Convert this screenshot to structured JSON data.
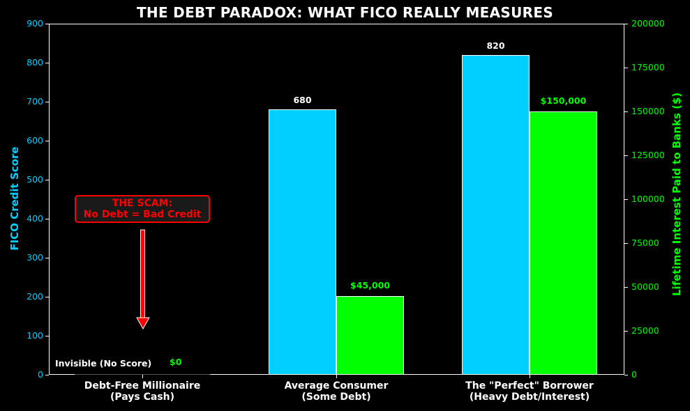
{
  "chart_data": {
    "type": "bar",
    "title": "THE DEBT PARADOX: WHAT FICO REALLY MEASURES",
    "categories": [
      "Debt-Free Millionaire\n(Pays Cash)",
      "Average Consumer\n(Some Debt)",
      "The \"Perfect\" Borrower\n(Heavy Debt/Interest)"
    ],
    "category_lines": [
      [
        "Debt-Free Millionaire",
        "(Pays Cash)"
      ],
      [
        "Average Consumer",
        "(Some Debt)"
      ],
      [
        "The \"Perfect\" Borrower",
        "(Heavy Debt/Interest)"
      ]
    ],
    "series": [
      {
        "name": "FICO Credit Score",
        "axis": "left",
        "color": "#00cfff",
        "values": [
          0,
          680,
          820
        ],
        "labels": [
          "",
          "680",
          "820"
        ]
      },
      {
        "name": "Lifetime Interest Paid to Banks ($)",
        "axis": "right",
        "color": "#00ff00",
        "values": [
          0,
          45000,
          150000
        ],
        "labels": [
          "$0",
          "$45,000",
          "$150,000"
        ]
      }
    ],
    "ylabel": "FICO Credit Score",
    "ylabel_right": "Lifetime Interest Paid to Banks ($)",
    "ylim": [
      0,
      900
    ],
    "ylim_right": [
      0,
      200000
    ],
    "yticks": [
      "0",
      "100",
      "200",
      "300",
      "400",
      "500",
      "600",
      "700",
      "800",
      "900"
    ],
    "yticks_right": [
      "0",
      "25000",
      "50000",
      "75000",
      "100000",
      "125000",
      "150000",
      "175000",
      "200000"
    ],
    "grid": false,
    "legend": null,
    "annotations": [
      {
        "text": "THE SCAM:\nNo Debt = Bad Credit",
        "color": "#ff0000",
        "arrow_to": "Debt-Free Millionaire"
      },
      {
        "text": "Invisible (No Score)",
        "color": "#ffffff"
      },
      {
        "text": "$0",
        "color": "#00ff00"
      }
    ],
    "background": "#000000"
  },
  "annotation": {
    "scam_line1": "THE SCAM:",
    "scam_line2": "No Debt = Bad Credit",
    "invisible": "Invisible (No Score)",
    "zero": "$0"
  }
}
